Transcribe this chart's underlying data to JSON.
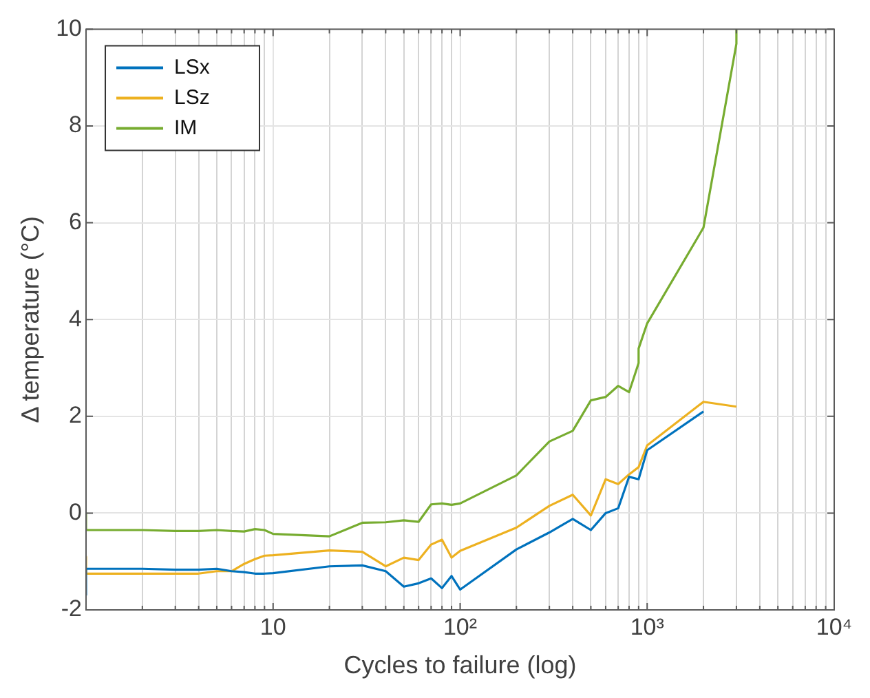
{
  "chart_data": {
    "type": "line",
    "xlabel": "Cycles to failure (log)",
    "ylabel": "Δ temperature (°C)",
    "log": "x",
    "xlim": [
      1,
      10000
    ],
    "ylim": [
      -2,
      10
    ],
    "xticks": [
      {
        "value": 1,
        "label": null
      },
      {
        "value": 2,
        "label": null
      },
      {
        "value": 3,
        "label": null
      },
      {
        "value": 4,
        "label": null
      },
      {
        "value": 5,
        "label": null
      },
      {
        "value": 6,
        "label": null
      },
      {
        "value": 7,
        "label": null
      },
      {
        "value": 8,
        "label": null
      },
      {
        "value": 9,
        "label": null
      },
      10,
      {
        "value": 20,
        "label": null
      },
      {
        "value": 30,
        "label": null
      },
      {
        "value": 40,
        "label": null
      },
      {
        "value": 50,
        "label": null
      },
      {
        "value": 60,
        "label": null
      },
      {
        "value": 70,
        "label": null
      },
      {
        "value": 80,
        "label": null
      },
      {
        "value": 90,
        "label": null
      },
      {
        "value": 100,
        "label": "10²"
      },
      {
        "value": 200,
        "label": null
      },
      {
        "value": 300,
        "label": null
      },
      {
        "value": 400,
        "label": null
      },
      {
        "value": 500,
        "label": null
      },
      {
        "value": 600,
        "label": null
      },
      {
        "value": 700,
        "label": null
      },
      {
        "value": 800,
        "label": null
      },
      {
        "value": 900,
        "label": null
      },
      {
        "value": 1000,
        "label": "10³"
      },
      {
        "value": 2000,
        "label": null
      },
      {
        "value": 3000,
        "label": null
      },
      {
        "value": 4000,
        "label": null
      },
      {
        "value": 5000,
        "label": null
      },
      {
        "value": 6000,
        "label": null
      },
      {
        "value": 7000,
        "label": null
      },
      {
        "value": 8000,
        "label": null
      },
      {
        "value": 9000,
        "label": null
      },
      {
        "value": 10000,
        "label": "10⁴"
      }
    ],
    "yticks": [
      -2,
      0,
      2,
      4,
      6,
      8,
      10
    ],
    "grid": true,
    "legend": "top left",
    "marker": "none",
    "line_style": "solid",
    "series": [
      {
        "name": "LSx",
        "color": "#0072bd",
        "x": [
          1,
          1,
          2,
          3,
          4,
          5,
          6,
          7,
          8,
          9,
          10,
          20,
          30,
          40,
          50,
          60,
          70,
          80,
          90,
          100,
          200,
          300,
          400,
          500,
          600,
          700,
          800,
          900,
          1000,
          2000
        ],
        "values": [
          -1.7,
          -1.15,
          -1.15,
          -1.17,
          -1.17,
          -1.15,
          -1.2,
          -1.22,
          -1.25,
          -1.25,
          -1.24,
          -1.1,
          -1.08,
          -1.2,
          -1.52,
          -1.45,
          -1.35,
          -1.55,
          -1.3,
          -1.58,
          -0.75,
          -0.4,
          -0.12,
          -0.35,
          0.0,
          0.1,
          0.75,
          0.7,
          1.3,
          2.1
        ]
      },
      {
        "name": "LSz",
        "color": "#edb120",
        "x": [
          1,
          1,
          2,
          3,
          4,
          5,
          6,
          7,
          8,
          9,
          10,
          20,
          30,
          40,
          50,
          60,
          70,
          80,
          90,
          100,
          200,
          300,
          400,
          500,
          600,
          700,
          800,
          900,
          1000,
          2000,
          3000
        ],
        "values": [
          -0.9,
          -1.25,
          -1.25,
          -1.25,
          -1.25,
          -1.2,
          -1.2,
          -1.05,
          -0.95,
          -0.88,
          -0.87,
          -0.77,
          -0.8,
          -1.1,
          -0.92,
          -0.97,
          -0.65,
          -0.55,
          -0.92,
          -0.78,
          -0.3,
          0.15,
          0.38,
          -0.05,
          0.7,
          0.6,
          0.8,
          0.95,
          1.4,
          2.3,
          2.2
        ]
      },
      {
        "name": "IM",
        "color": "#77ac30",
        "x": [
          1,
          1,
          2,
          3,
          4,
          5,
          6,
          7,
          8,
          9,
          10,
          20,
          30,
          40,
          50,
          60,
          70,
          80,
          90,
          100,
          200,
          300,
          400,
          500,
          600,
          700,
          800,
          900,
          900,
          1000,
          2000,
          3000,
          3000
        ],
        "values": [
          0,
          -0.35,
          -0.35,
          -0.37,
          -0.37,
          -0.35,
          -0.37,
          -0.38,
          -0.33,
          -0.35,
          -0.43,
          -0.48,
          -0.2,
          -0.19,
          -0.15,
          -0.18,
          0.18,
          0.2,
          0.17,
          0.2,
          0.78,
          1.48,
          1.7,
          2.33,
          2.4,
          2.63,
          2.5,
          3.1,
          3.4,
          3.92,
          5.9,
          9.7,
          10
        ]
      }
    ]
  }
}
